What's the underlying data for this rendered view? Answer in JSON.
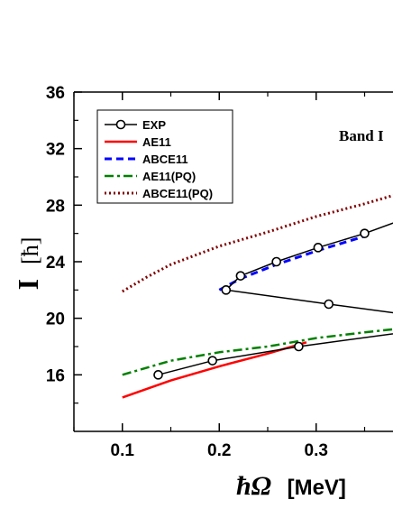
{
  "chart_data": {
    "type": "line",
    "xlabel_symbol": "ħΩ",
    "xlabel_unit": "[MeV]",
    "ylabel_symbol": "I",
    "ylabel_unit": "[ħ]",
    "xlim": [
      0.05,
      0.39
    ],
    "ylim": [
      12,
      36
    ],
    "xticks": [
      "0.1",
      "0.2",
      "0.3"
    ],
    "xtick_values": [
      0.1,
      0.2,
      0.3
    ],
    "yticks": [
      "16",
      "20",
      "24",
      "28",
      "32",
      "36"
    ],
    "ytick_values": [
      16,
      20,
      24,
      28,
      32,
      36
    ],
    "annotation": "Band I",
    "legend_position": "top-left",
    "series": [
      {
        "name": "EXP",
        "color": "#000000",
        "style": "solid-circles",
        "points": [
          [
            0.137,
            16.0
          ],
          [
            0.193,
            17.0
          ],
          [
            0.282,
            18.0
          ],
          [
            0.39,
            19.0
          ]
        ]
      },
      {
        "name": "EXP",
        "color": "#000000",
        "style": "solid-circles",
        "points": [
          [
            0.39,
            20.3
          ],
          [
            0.313,
            21.0
          ],
          [
            0.207,
            22.0
          ],
          [
            0.222,
            23.0
          ],
          [
            0.259,
            24.0
          ],
          [
            0.302,
            25.0
          ],
          [
            0.35,
            26.0
          ],
          [
            0.39,
            27.0
          ]
        ]
      },
      {
        "name": "AE11",
        "color": "#ff0000",
        "style": "solid",
        "points": [
          [
            0.1,
            14.4
          ],
          [
            0.15,
            15.6
          ],
          [
            0.2,
            16.6
          ],
          [
            0.25,
            17.5
          ],
          [
            0.29,
            18.3
          ]
        ]
      },
      {
        "name": "ABCE11",
        "color": "#0000ff",
        "style": "dashed",
        "points": [
          [
            0.2,
            22.0
          ],
          [
            0.222,
            22.8
          ],
          [
            0.259,
            23.8
          ],
          [
            0.302,
            24.8
          ],
          [
            0.35,
            25.8
          ]
        ]
      },
      {
        "name": "AE11(PQ)",
        "color": "#008000",
        "style": "dashdot",
        "points": [
          [
            0.1,
            16.0
          ],
          [
            0.15,
            17.0
          ],
          [
            0.2,
            17.6
          ],
          [
            0.25,
            18.0
          ],
          [
            0.3,
            18.6
          ],
          [
            0.35,
            19.0
          ],
          [
            0.39,
            19.3
          ]
        ]
      },
      {
        "name": "ABCE11(PQ)",
        "color": "#800000",
        "style": "dotted",
        "points": [
          [
            0.1,
            21.9
          ],
          [
            0.125,
            22.9
          ],
          [
            0.15,
            23.8
          ],
          [
            0.2,
            25.1
          ],
          [
            0.25,
            26.1
          ],
          [
            0.3,
            27.2
          ],
          [
            0.35,
            28.1
          ],
          [
            0.39,
            28.9
          ]
        ]
      }
    ]
  }
}
